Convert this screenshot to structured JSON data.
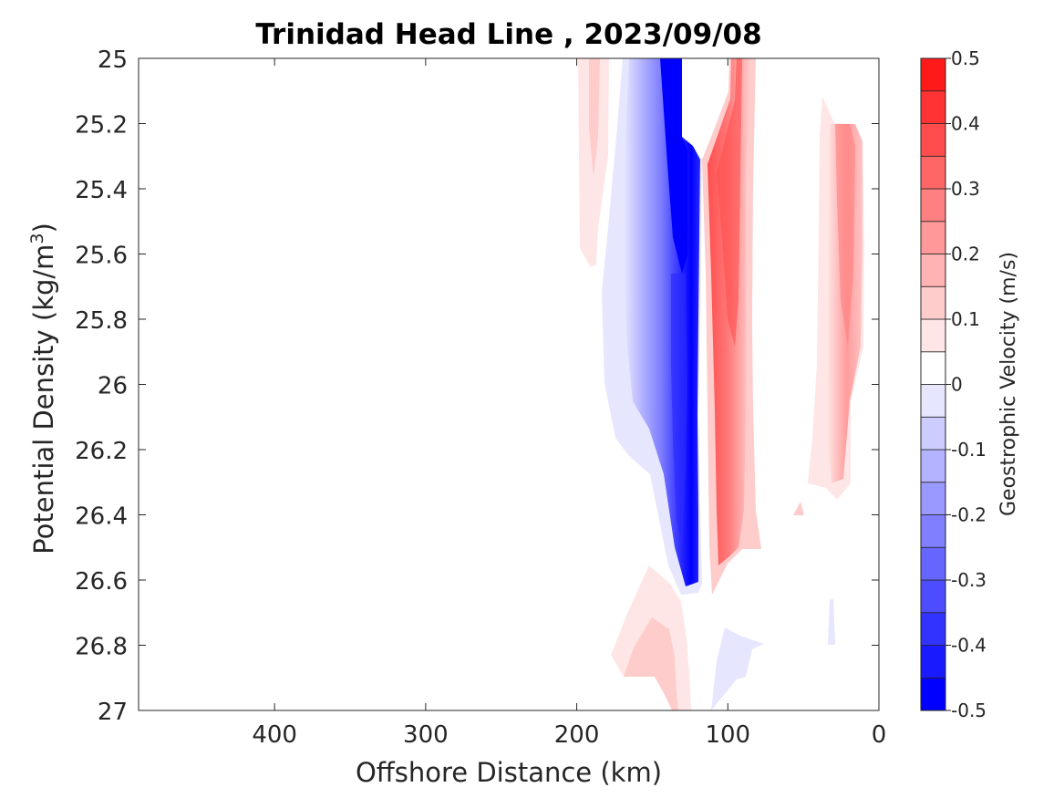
{
  "chart_data": {
    "type": "contour",
    "title": "Trinidad Head Line , 2023/09/08",
    "xlabel": "Offshore Distance (km)",
    "ylabel_main": "Potential Density (kg/m",
    "ylabel_sup": "3",
    "ylabel_end": ")",
    "xlim": [
      490,
      0
    ],
    "ylim": [
      25,
      27
    ],
    "y_reversed": true,
    "x_ticks": [
      400,
      300,
      200,
      100,
      0
    ],
    "x_tick_labels": [
      "400",
      "300",
      "200",
      "100",
      "0"
    ],
    "y_ticks": [
      25,
      25.2,
      25.4,
      25.6,
      25.8,
      26,
      26.2,
      26.4,
      26.6,
      26.8,
      27
    ],
    "y_tick_labels": [
      "25",
      "25.2",
      "25.4",
      "25.6",
      "25.8",
      "26",
      "26.2",
      "26.4",
      "26.6",
      "26.8",
      "27"
    ],
    "colorbar": {
      "label": "Geostrophic Velocity (m/s)",
      "range": [
        -0.5,
        0.5
      ],
      "levels": [
        -0.5,
        -0.45,
        -0.4,
        -0.35,
        -0.3,
        -0.25,
        -0.2,
        -0.15,
        -0.1,
        -0.05,
        0,
        0.05,
        0.1,
        0.15,
        0.2,
        0.25,
        0.3,
        0.35,
        0.4,
        0.45,
        0.5
      ],
      "colors": [
        "#0000ff",
        "#1a1aff",
        "#3333ff",
        "#4d4dff",
        "#6666ff",
        "#8080ff",
        "#9999ff",
        "#b3b3ff",
        "#ccccff",
        "#e6e6ff",
        "#ffffff",
        "#ffe6e6",
        "#ffcccc",
        "#ffb3b3",
        "#ff9999",
        "#ff8080",
        "#ff6666",
        "#ff4d4d",
        "#ff3333",
        "#ff1a1a"
      ],
      "tick_values": [
        0.5,
        0.4,
        0.3,
        0.2,
        0.1,
        0,
        -0.1,
        -0.2,
        -0.3,
        -0.4,
        -0.5
      ],
      "tick_labels": [
        "0.5",
        "0.4",
        "0.3",
        "0.2",
        "0.1",
        "0",
        "-0.1",
        "-0.2",
        "-0.3",
        "-0.4",
        "-0.5"
      ]
    },
    "features": [
      {
        "name": "offshore weak positive lobe",
        "sign": "positive",
        "x_range": [
          202,
          180
        ],
        "density_range": [
          25,
          25.65
        ],
        "peak_velocity": 0.1
      },
      {
        "name": "southward jet",
        "sign": "negative",
        "x_range": [
          185,
          115
        ],
        "density_range": [
          25,
          26.65
        ],
        "peak_velocity": -0.5
      },
      {
        "name": "northward jet",
        "sign": "positive",
        "x_range": [
          120,
          80
        ],
        "density_range": [
          25,
          26.65
        ],
        "peak_velocity": 0.35
      },
      {
        "name": "nearshore positive lobe",
        "sign": "positive",
        "x_range": [
          48,
          10
        ],
        "density_range": [
          25.2,
          26.4
        ],
        "peak_velocity": 0.25
      },
      {
        "name": "deep positive patch",
        "sign": "positive",
        "x_range": [
          175,
          125
        ],
        "density_range": [
          26.55,
          27
        ],
        "peak_velocity": 0.15
      },
      {
        "name": "deep weak negative patch",
        "sign": "negative",
        "x_range": [
          110,
          75
        ],
        "density_range": [
          26.75,
          27
        ],
        "peak_velocity": -0.1
      },
      {
        "name": "small deep negative patch",
        "sign": "negative",
        "x_range": [
          35,
          30
        ],
        "density_range": [
          26.65,
          26.8
        ],
        "peak_velocity": -0.1
      }
    ]
  }
}
